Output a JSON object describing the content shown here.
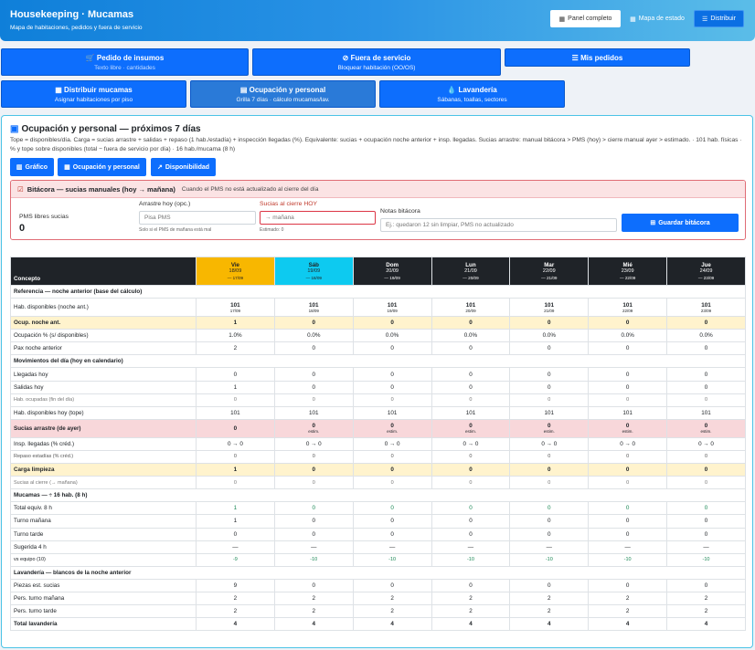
{
  "header": {
    "title": "Housekeeping · Mucamas",
    "subtitle": "Mapa de habitaciones, pedidos y fuera de servicio",
    "btn_panel": "Panel completo",
    "btn_mapa": "Mapa de estado",
    "btn_distribuir": "Distribuir"
  },
  "tiles": [
    {
      "title": "Pedido de insumos",
      "sub": "Texto libre · cantidades"
    },
    {
      "title": "Fuera de servicio",
      "sub": "Bloquear habitación (OO/OS)"
    },
    {
      "title": "Mis pedidos",
      "sub": ""
    },
    {
      "title": "Distribuir mucamas",
      "sub": "Asignar habitaciones por piso"
    },
    {
      "title": "Ocupación y personal",
      "sub": "Grilla 7 días · cálculo mucamas/lav."
    },
    {
      "title": "Lavandería",
      "sub": "Sábanas, toallas, sectores"
    }
  ],
  "panel": {
    "title": "Ocupación y personal — próximos 7 días",
    "desc": "Tope = disponibles/día. Carga = sucias arrastre + salidas + repaso (1 hab./estadía) + inspección llegadas (%). Equivalente: sucias + ocupación noche anterior + insp. llegadas. Sucias arrastre: manual bitácora > PMS (hoy) > cierre manual ayer > estimado. · 101 hab. físicas · % y tope sobre disponibles (total − fuera de servicio por día) · 16 hab./mucama (8 h)",
    "btn_grafico": "Gráfico",
    "btn_ocupacion": "Ocupación y personal",
    "btn_disponibilidad": "Disponibilidad"
  },
  "bitacora": {
    "title": "Bitácora — sucias manuales (hoy → mañana)",
    "hint": "Cuando el PMS no está actualizado al cierre del día",
    "pms_label": "PMS libres sucias",
    "pms_value": "0",
    "arrastre_label": "Arrastre hoy (opc.)",
    "arrastre_placeholder": "Pisa PMS",
    "arrastre_note": "Solo si el PMS de mañana está mal",
    "cierre_label": "Sucias al cierre HOY",
    "cierre_placeholder": "→ mañana",
    "cierre_note": "Estimado: 0",
    "notas_label": "Notas bitácora",
    "notas_placeholder": "Ej.: quedaron 12 sin limpiar, PMS no actualizado",
    "save": "Guardar bitácora"
  },
  "table": {
    "concept": "Concepto",
    "days": [
      {
        "d": "Vie",
        "date": "18/09",
        "sub": "— 17/09"
      },
      {
        "d": "Sáb",
        "date": "19/09",
        "sub": "— 18/09"
      },
      {
        "d": "Dom",
        "date": "20/09",
        "sub": "— 19/09"
      },
      {
        "d": "Lun",
        "date": "21/09",
        "sub": "— 20/09"
      },
      {
        "d": "Mar",
        "date": "22/09",
        "sub": "— 21/09"
      },
      {
        "d": "Mié",
        "date": "23/09",
        "sub": "— 22/09"
      },
      {
        "d": "Jue",
        "date": "24/09",
        "sub": "— 23/09"
      }
    ],
    "rows": [
      {
        "type": "sect",
        "label": "Referencia — noche anterior (base del cálculo)"
      },
      {
        "type": "hab",
        "label": "Hab. disponibles (noche ant.)",
        "values": [
          "101",
          "101",
          "101",
          "101",
          "101",
          "101",
          "101"
        ],
        "subs": [
          "17/09",
          "18/09",
          "19/09",
          "20/09",
          "21/09",
          "22/09",
          "23/09"
        ]
      },
      {
        "type": "bold yellow",
        "label": "Ocup. noche ant.",
        "values": [
          "1",
          "0",
          "0",
          "0",
          "0",
          "0",
          "0"
        ]
      },
      {
        "type": "",
        "label": "Ocupación % (s/ disponibles)",
        "values": [
          "1.0%",
          "0.0%",
          "0.0%",
          "0.0%",
          "0.0%",
          "0.0%",
          "0.0%"
        ]
      },
      {
        "type": "",
        "label": "Pax noche anterior",
        "values": [
          "2",
          "0",
          "0",
          "0",
          "0",
          "0",
          "0"
        ]
      },
      {
        "type": "sect",
        "label": "Movimientos del día (hoy en calendario)"
      },
      {
        "type": "",
        "label": "Llegadas hoy",
        "values": [
          "0",
          "0",
          "0",
          "0",
          "0",
          "0",
          "0"
        ]
      },
      {
        "type": "",
        "label": "Salidas hoy",
        "values": [
          "1",
          "0",
          "0",
          "0",
          "0",
          "0",
          "0"
        ]
      },
      {
        "type": "small grey",
        "label": "Hab. ocupadas (fin del día)",
        "values": [
          "0",
          "0",
          "0",
          "0",
          "0",
          "0",
          "0"
        ]
      },
      {
        "type": "",
        "label": "Hab. disponibles hoy (tope)",
        "values": [
          "101",
          "101",
          "101",
          "101",
          "101",
          "101",
          "101"
        ]
      },
      {
        "type": "pink",
        "label": "Sucias arrastre (de ayer)",
        "values": [
          "0",
          "0",
          "0",
          "0",
          "0",
          "0",
          "0"
        ],
        "subs": [
          "",
          "estim.",
          "estim.",
          "estim.",
          "estim.",
          "estim.",
          "estim."
        ]
      },
      {
        "type": "",
        "label": "Insp. llegadas (% créd.)",
        "values": [
          "0 → 0",
          "0 → 0",
          "0 → 0",
          "0 → 0",
          "0 → 0",
          "0 → 0",
          "0 → 0"
        ]
      },
      {
        "type": "small",
        "label": "Repaso estadías (% créd.)",
        "values": [
          "0",
          "0",
          "0",
          "0",
          "0",
          "0",
          "0"
        ]
      },
      {
        "type": "bold yellow",
        "label": "Carga limpieza",
        "values": [
          "1",
          "0",
          "0",
          "0",
          "0",
          "0",
          "0"
        ]
      },
      {
        "type": "small grey",
        "label": "Sucias al cierre (→ mañana)",
        "values": [
          "0",
          "0",
          "0",
          "0",
          "0",
          "0",
          "0"
        ]
      },
      {
        "type": "sect",
        "label": "Mucamas — ÷ 16 hab. (8 h)"
      },
      {
        "type": "green",
        "label": "Total equiv. 8 h",
        "values": [
          "1",
          "0",
          "0",
          "0",
          "0",
          "0",
          "0"
        ]
      },
      {
        "type": "",
        "label": "Turno mañana",
        "values": [
          "1",
          "0",
          "0",
          "0",
          "0",
          "0",
          "0"
        ]
      },
      {
        "type": "",
        "label": "Turno tarde",
        "values": [
          "0",
          "0",
          "0",
          "0",
          "0",
          "0",
          "0"
        ]
      },
      {
        "type": "",
        "label": "Sugerida 4 h",
        "values": [
          "—",
          "—",
          "—",
          "—",
          "—",
          "—",
          "—"
        ]
      },
      {
        "type": "small green",
        "label": "vs equipo (10)",
        "values": [
          "-9",
          "-10",
          "-10",
          "-10",
          "-10",
          "-10",
          "-10"
        ]
      },
      {
        "type": "sect",
        "label": "Lavandería — blancos de la noche anterior"
      },
      {
        "type": "",
        "label": "Piezas est. sucias",
        "values": [
          "9",
          "0",
          "0",
          "0",
          "0",
          "0",
          "0"
        ]
      },
      {
        "type": "",
        "label": "Pers. turno mañana",
        "values": [
          "2",
          "2",
          "2",
          "2",
          "2",
          "2",
          "2"
        ]
      },
      {
        "type": "",
        "label": "Pers. turno tarde",
        "values": [
          "2",
          "2",
          "2",
          "2",
          "2",
          "2",
          "2"
        ]
      },
      {
        "type": "bold",
        "label": "Total lavandería",
        "values": [
          "4",
          "4",
          "4",
          "4",
          "4",
          "4",
          "4"
        ]
      }
    ]
  }
}
